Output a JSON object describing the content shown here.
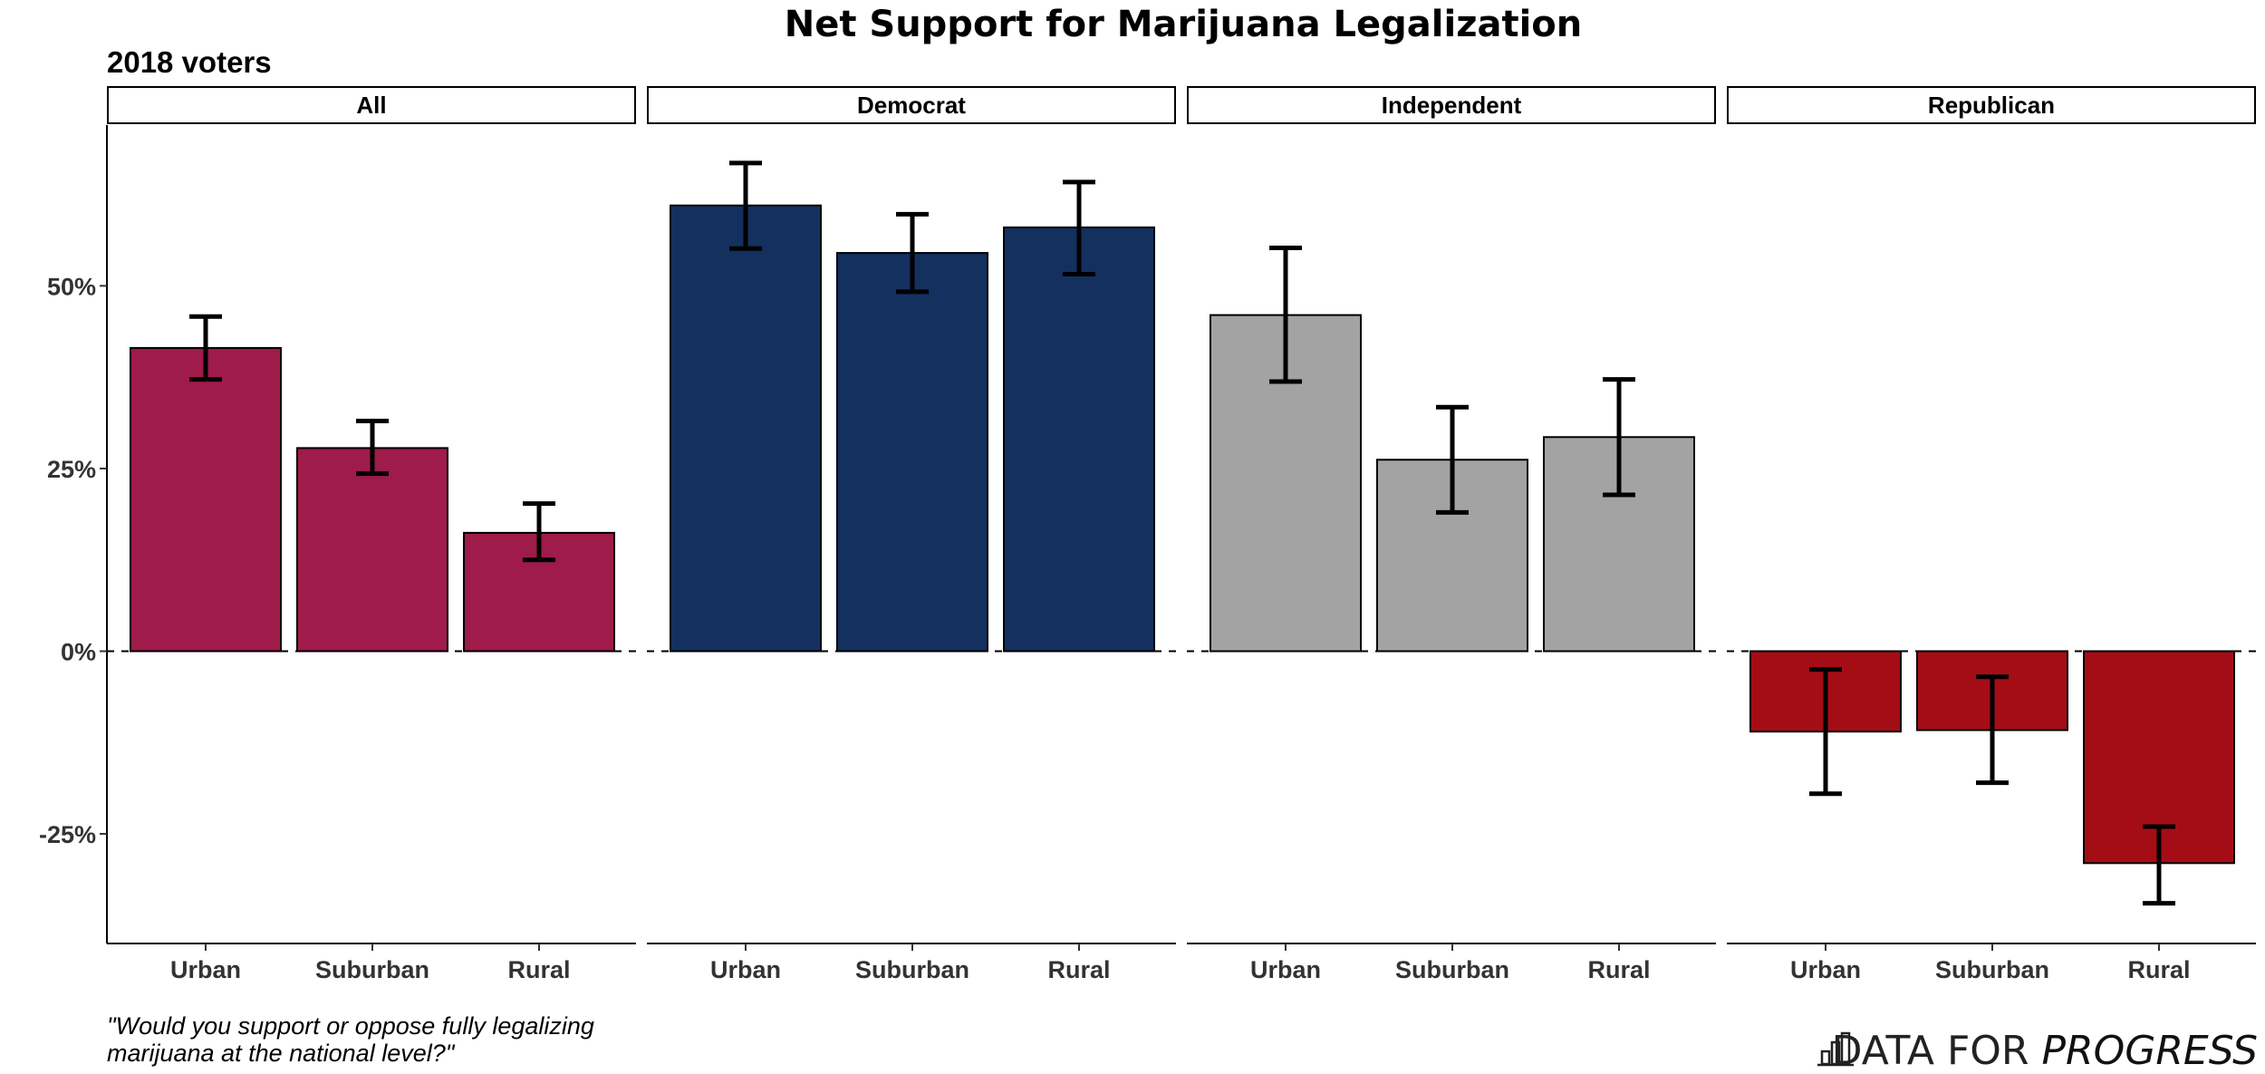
{
  "chart_data": {
    "type": "bar",
    "title": "Net Support for Marijuana Legalization",
    "subtitle": "2018 voters",
    "caption_lines": [
      "\"Would you support or oppose fully legalizing",
      "marijuana at the national level?\""
    ],
    "categories": [
      "Urban",
      "Suburban",
      "Rural"
    ],
    "ylim": [
      -0.4,
      0.72
    ],
    "yticks": [
      {
        "value": 0.5,
        "label": "50%"
      },
      {
        "value": 0.25,
        "label": "25%"
      },
      {
        "value": 0,
        "label": "0%"
      },
      {
        "value": -0.25,
        "label": "-25%"
      }
    ],
    "panels": [
      {
        "name": "All",
        "color": "#9e1b4a",
        "values": [
          0.415,
          0.278,
          0.162
        ],
        "errors": [
          [
            0.372,
            0.458
          ],
          [
            0.243,
            0.315
          ],
          [
            0.125,
            0.202
          ]
        ]
      },
      {
        "name": "Democrat",
        "color": "#13305f",
        "values": [
          0.61,
          0.545,
          0.58
        ],
        "errors": [
          [
            0.551,
            0.668
          ],
          [
            0.492,
            0.598
          ],
          [
            0.516,
            0.642
          ]
        ]
      },
      {
        "name": "Independent",
        "color": "#a3a3a3",
        "values": [
          0.46,
          0.262,
          0.293
        ],
        "errors": [
          [
            0.369,
            0.552
          ],
          [
            0.19,
            0.334
          ],
          [
            0.214,
            0.372
          ]
        ]
      },
      {
        "name": "Republican",
        "color": "#a50d16",
        "values": [
          -0.11,
          -0.108,
          -0.29
        ],
        "errors": [
          [
            -0.195,
            -0.025
          ],
          [
            -0.18,
            -0.035
          ],
          [
            -0.345,
            -0.24
          ]
        ]
      }
    ],
    "reference_line": {
      "value": 0,
      "style": "dashed"
    },
    "grid": false
  },
  "branding": {
    "logo_icon": "bar-chart-icon",
    "logo_text_regular": "DATA FOR ",
    "logo_text_italic": "PROGRESS"
  }
}
